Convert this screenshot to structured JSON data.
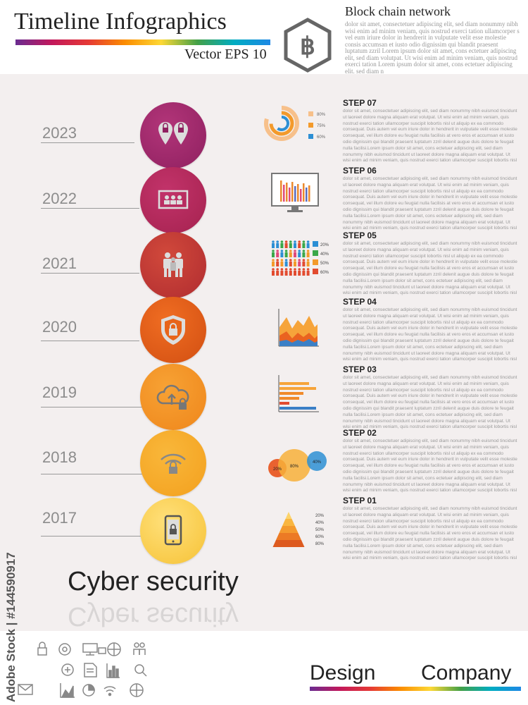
{
  "header": {
    "title": "Timeline  Infographics",
    "subtitle": "Vector  EPS 10",
    "hex_symbol": "฿",
    "network_title": "Block chain network",
    "network_body": "dolor sit amet, consectetuer adipiscing elit, sed diam nonummy nibh wisi enim ad minim veniam, quis nostrud exerci tation ullamcorper s vel eum iriure dolor in hendrerit in vulputate velit esse molestie consis accumsan et iusto odio dignissim qui blandit praesent luptatum zzril Lorem ipsum dolor sit amet, cons ectetuer adipiscing elit, sed diam volutpat. Ut wisi enim ad minim veniam, quis nostrud exerci tation Lorem ipsum dolor sit amet, cons ectetuer adipiscing elit, sed diam n"
  },
  "colors": {
    "step07": "#a3296a",
    "step06": "#b52a5d",
    "step05": "#c23a3a",
    "step04": "#e0561c",
    "step03": "#ef8a1a",
    "step02": "#f5a11c",
    "step01": "#f7c32f"
  },
  "timeline": [
    {
      "year": "2023",
      "icon": "location-lock-pins-icon"
    },
    {
      "year": "2022",
      "icon": "monitor-users-icon"
    },
    {
      "year": "2021",
      "icon": "people-group-icon"
    },
    {
      "year": "2020",
      "icon": "shield-lock-icon"
    },
    {
      "year": "2019",
      "icon": "cloud-upload-lock-icon"
    },
    {
      "year": "2018",
      "icon": "wifi-lock-icon"
    },
    {
      "year": "2017",
      "icon": "smartphone-lock-icon"
    }
  ],
  "steps": [
    {
      "title": "STEP 07",
      "body": "dolor sit amet, consectetuer adipiscing elit, sed diam nonummy nibh euismod tincidunt ut laoreet dolore magna aliquam erat volutpat. Ut wisi enim ad minim veniam, quis nostrud exerci tation ullamcorper suscipit lobortis nisl ut aliquip ex ea commodo consequat. Duis autem vel eum iriure dolor in hendrerit in vulputate velit esse molestie consequat, vel illum dolore eu feugiat nulla facilisis at vero eros et accumsan et iusto odio dignissim qui blandit praesent luptatum zzril delenit augue duis dolore te feugait nulla facilisi.Lorem ipsum dolor sit amet, cons ectetuer adipiscing elit, sed diam nonummy nibh euismod tincidunt ut laoreet dolore magna aliquam erat volutpat. Ut wisi enim ad minim veniam, quis nostrud exerci tation ullamcorper suscipit lobortis nisl ut aliquip ex ea commodo consequat."
    },
    {
      "title": "STEP 06",
      "body": "dolor sit amet, consectetuer adipiscing elit, sed diam nonummy nibh euismod tincidunt ut laoreet dolore magna aliquam erat volutpat. Ut wisi enim ad minim veniam, quis nostrud exerci tation ullamcorper suscipit lobortis nisl ut aliquip ex ea commodo consequat. Duis autem vel eum iriure dolor in hendrerit in vulputate velit esse molestie consequat, vel illum dolore eu feugiat nulla facilisis at vero eros et accumsan et iusto odio dignissim qui blandit praesent luptatum zzril delenit augue duis dolore te feugait nulla facilisi.Lorem ipsum dolor sit amet, cons ectetuer adipiscing elit, sed diam nonummy nibh euismod tincidunt ut laoreet dolore magna aliquam erat volutpat. Ut wisi enim ad minim veniam, quis nostrud exerci tation ullamcorper suscipit lobortis nisl ut aliquip ex ea commodo consequat."
    },
    {
      "title": "STEP 05",
      "body": "dolor sit amet, consectetuer adipiscing elit, sed diam nonummy nibh euismod tincidunt ut laoreet dolore magna aliquam erat volutpat. Ut wisi enim ad minim veniam, quis nostrud exerci tation ullamcorper suscipit lobortis nisl ut aliquip ex ea commodo consequat. Duis autem vel eum iriure dolor in hendrerit in vulputate velit esse molestie consequat, vel illum dolore eu feugiat nulla facilisis at vero eros et accumsan et iusto odio dignissim qui blandit praesent luptatum zzril delenit augue duis dolore te feugait nulla facilisi.Lorem ipsum dolor sit amet, cons ectetuer adipiscing elit, sed diam nonummy nibh euismod tincidunt ut laoreet dolore magna aliquam erat volutpat. Ut wisi enim ad minim veniam, quis nostrud exerci tation ullamcorper suscipit lobortis nisl ut aliquip ex ea commodo consequat."
    },
    {
      "title": "STEP 04",
      "body": "dolor sit amet, consectetuer adipiscing elit, sed diam nonummy nibh euismod tincidunt ut laoreet dolore magna aliquam erat volutpat. Ut wisi enim ad minim veniam, quis nostrud exerci tation ullamcorper suscipit lobortis nisl ut aliquip ex ea commodo consequat. Duis autem vel eum iriure dolor in hendrerit in vulputate velit esse molestie consequat, vel illum dolore eu feugiat nulla facilisis at vero eros et accumsan et iusto odio dignissim qui blandit praesent luptatum zzril delenit augue duis dolore te feugait nulla facilisi.Lorem ipsum dolor sit amet, cons ectetuer adipiscing elit, sed diam nonummy nibh euismod tincidunt ut laoreet dolore magna aliquam erat volutpat. Ut wisi enim ad minim veniam, quis nostrud exerci tation ullamcorper suscipit lobortis nisl ut aliquip ex ea commodo consequat."
    },
    {
      "title": "STEP 03",
      "body": "dolor sit amet, consectetuer adipiscing elit, sed diam nonummy nibh euismod tincidunt ut laoreet dolore magna aliquam erat volutpat. Ut wisi enim ad minim veniam, quis nostrud exerci tation ullamcorper suscipit lobortis nisl ut aliquip ex ea commodo consequat. Duis autem vel eum iriure dolor in hendrerit in vulputate velit esse molestie consequat, vel illum dolore eu feugiat nulla facilisis at vero eros et accumsan et iusto odio dignissim qui blandit praesent luptatum zzril delenit augue duis dolore te feugait nulla facilisi.Lorem ipsum dolor sit amet, cons ectetuer adipiscing elit, sed diam nonummy nibh euismod tincidunt ut laoreet dolore magna aliquam erat volutpat. Ut wisi enim ad minim veniam, quis nostrud exerci tation ullamcorper suscipit lobortis nisl ut aliquip ex ea commodo consequat."
    },
    {
      "title": "STEP 02",
      "body": "dolor sit amet, consectetuer adipiscing elit, sed diam nonummy nibh euismod tincidunt ut laoreet dolore magna aliquam erat volutpat. Ut wisi enim ad minim veniam, quis nostrud exerci tation ullamcorper suscipit lobortis nisl ut aliquip ex ea commodo consequat. Duis autem vel eum iriure dolor in hendrerit in vulputate velit esse molestie consequat, vel illum dolore eu feugiat nulla facilisis at vero eros et accumsan et iusto odio dignissim qui blandit praesent luptatum zzril delenit augue duis dolore te feugait nulla facilisi.Lorem ipsum dolor sit amet, cons ectetuer adipiscing elit, sed diam nonummy nibh euismod tincidunt ut laoreet dolore magna aliquam erat volutpat. Ut wisi enim ad minim veniam, quis nostrud exerci tation ullamcorper suscipit lobortis nisl ut aliquip ex ea commodo consequat."
    },
    {
      "title": "STEP 01",
      "body": "dolor sit amet, consectetuer adipiscing elit, sed diam nonummy nibh euismod tincidunt ut laoreet dolore magna aliquam erat volutpat. Ut wisi enim ad minim veniam, quis nostrud exerci tation ullamcorper suscipit lobortis nisl ut aliquip ex ea commodo consequat. Duis autem vel eum iriure dolor in hendrerit in vulputate velit esse molestie consequat, vel illum dolore eu feugiat nulla facilisis at vero eros et accumsan et iusto odio dignissim qui blandit praesent luptatum zzril delenit augue duis dolore te feugait nulla facilisi.Lorem ipsum dolor sit amet, cons ectetuer adipiscing elit, sed diam nonummy nibh euismod tincidunt ut laoreet dolore magna aliquam erat volutpat. Ut wisi enim ad minim veniam, quis nostrud exerci tation ullamcorper suscipit lobortis nisl ut aliquip ex ea commodo consequat."
    }
  ],
  "mini_charts": {
    "step07_rings": [
      "80%",
      "75%",
      "60%"
    ],
    "step05_people": [
      "20%",
      "40%",
      "50%",
      "60%"
    ],
    "step02_circles": [
      "20%",
      "80%",
      "40%"
    ],
    "step01_pyramid": [
      "20%",
      "40%",
      "50%",
      "60%",
      "80%"
    ]
  },
  "footer": {
    "headline": "Cyber security",
    "watermark": "Adobe Stock | #144590917",
    "design": "Design",
    "company": "Company",
    "icons": [
      "lock-icon",
      "gear-icon",
      "monitor-network-icon",
      "globe-icon",
      "people-icon",
      "plus-circle-icon",
      "document-icon",
      "bar-chart-icon",
      "magnifier-icon",
      "envelope-icon",
      "area-chart-icon",
      "pie-chart-icon",
      "wifi-icon",
      "globe-lock-icon"
    ]
  }
}
